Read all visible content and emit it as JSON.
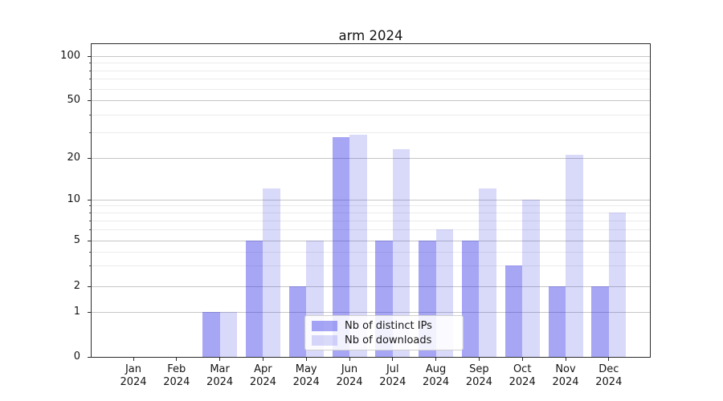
{
  "chart_data": {
    "type": "bar",
    "title": "arm 2024",
    "x_year": "2024",
    "categories": [
      "Jan",
      "Feb",
      "Mar",
      "Apr",
      "May",
      "Jun",
      "Jul",
      "Aug",
      "Sep",
      "Oct",
      "Nov",
      "Dec"
    ],
    "series": [
      {
        "name": "Nb of distinct IPs",
        "color": "rgba(43,43,230,0.42)",
        "values": [
          0,
          0,
          1,
          5,
          2,
          28,
          5,
          5,
          5,
          3,
          2,
          2
        ]
      },
      {
        "name": "Nb of downloads",
        "color": "rgba(43,43,230,0.18)",
        "values": [
          0,
          0,
          1,
          12,
          5,
          29,
          23,
          6,
          12,
          10,
          21,
          8
        ]
      }
    ],
    "y_axis": {
      "scale": "symlog",
      "ticks": [
        100,
        50,
        20,
        10,
        5,
        2,
        1,
        0
      ],
      "major_gridlines": [
        1,
        2,
        5,
        10,
        20,
        50,
        100
      ],
      "minor_gridlines": [
        3,
        4,
        6,
        7,
        8,
        9,
        30,
        40,
        60,
        70,
        80,
        90
      ],
      "range_top_value": 120
    },
    "legend": {
      "position": "lower center",
      "entries": [
        "Nb of distinct IPs",
        "Nb of downloads"
      ]
    },
    "grid": true,
    "colors": {
      "bar_base": "#2b2be6",
      "grid_major": "#c6c6c6",
      "grid_minor": "#ebebeb",
      "axis": "#2b2b2b",
      "text": "#151515"
    }
  }
}
